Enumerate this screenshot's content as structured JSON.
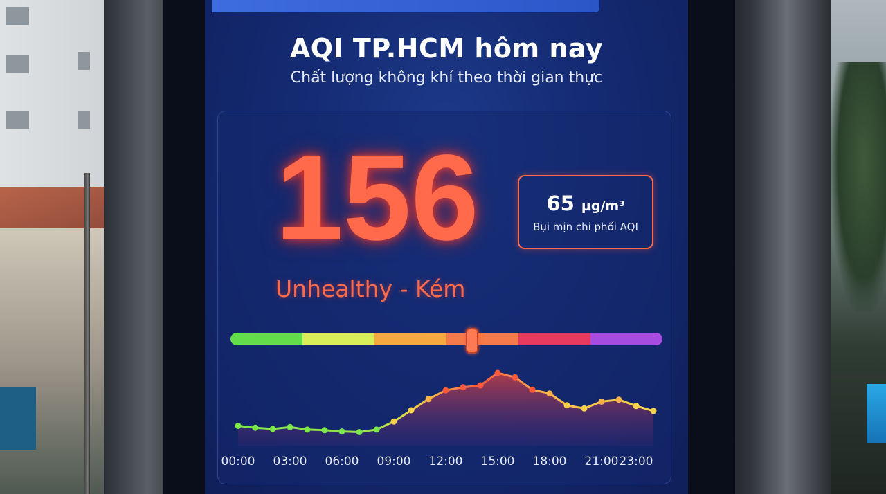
{
  "screen": {
    "title": "AQI TP.HCM hôm nay",
    "subtitle": "Chất lượng không khí theo thời gian thực"
  },
  "aqi": {
    "value": "156",
    "status": "Unhealthy - Kém",
    "status_color": "#ff6a4a",
    "scale_position": 0.56
  },
  "pollutant": {
    "value": "65",
    "unit": "µg/m³",
    "label": "Bụi mịn chi phối AQI"
  },
  "scale_colors": [
    "#63dd4a",
    "#d8ef5a",
    "#f7a83e",
    "#f77a4a",
    "#e83a5e",
    "#a64ce0"
  ],
  "chart_data": {
    "type": "area",
    "title": "",
    "xlabel": "",
    "ylabel": "",
    "x_ticks": [
      "00:00",
      "03:00",
      "06:00",
      "09:00",
      "12:00",
      "15:00",
      "18:00",
      "21:00",
      "23:00"
    ],
    "x": [
      0,
      1,
      2,
      3,
      4,
      5,
      6,
      7,
      8,
      9,
      10,
      11,
      12,
      13,
      14,
      15,
      16,
      17,
      18,
      19,
      20,
      21,
      22,
      23,
      24
    ],
    "values": [
      55,
      52,
      50,
      53,
      49,
      48,
      46,
      45,
      49,
      62,
      80,
      98,
      112,
      117,
      120,
      140,
      133,
      113,
      107,
      88,
      83,
      94,
      97,
      87,
      79
    ],
    "ylim": [
      30,
      150
    ],
    "grid": false
  }
}
